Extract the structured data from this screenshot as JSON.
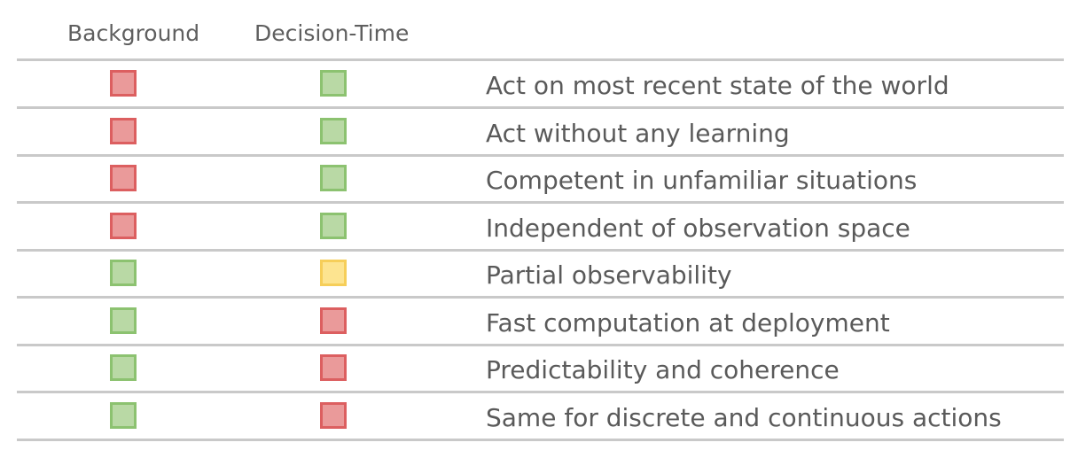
{
  "header": {
    "col_background": "Background",
    "col_decision_time": "Decision-Time"
  },
  "colors": {
    "red": "#ea9a9a",
    "green": "#b9d9a5",
    "yellow": "#fde490"
  },
  "rows": [
    {
      "label": "Act on most recent state of the world",
      "background": "red",
      "decision_time": "green"
    },
    {
      "label": "Act without any learning",
      "background": "red",
      "decision_time": "green"
    },
    {
      "label": "Competent in unfamiliar situations",
      "background": "red",
      "decision_time": "green"
    },
    {
      "label": "Independent of observation space",
      "background": "red",
      "decision_time": "green"
    },
    {
      "label": "Partial observability",
      "background": "green",
      "decision_time": "yellow"
    },
    {
      "label": "Fast computation at deployment",
      "background": "green",
      "decision_time": "red"
    },
    {
      "label": "Predictability and coherence",
      "background": "green",
      "decision_time": "red"
    },
    {
      "label": "Same for discrete and continuous actions",
      "background": "green",
      "decision_time": "red"
    }
  ]
}
